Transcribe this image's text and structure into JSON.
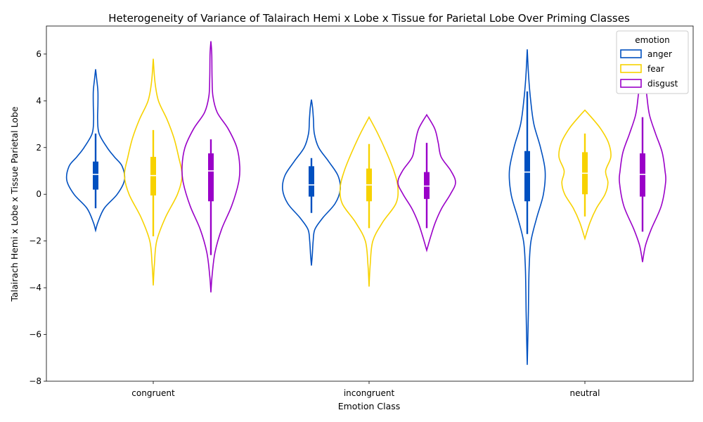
{
  "chart_data": {
    "type": "violin",
    "title": "Heterogeneity of Variance of Talairach Hemi x Lobe x Tissue for Parietal Lobe Over Priming Classes",
    "xlabel": "Emotion Class",
    "ylabel": "Talairach Hemi x Lobe x Tissue Parietal Lobe",
    "categories": [
      "congruent",
      "incongruent",
      "neutral"
    ],
    "ylim": [
      -8,
      7.2
    ],
    "yticks": [
      -8,
      -6,
      -4,
      -2,
      0,
      2,
      4,
      6
    ],
    "ytick_labels": [
      "−8",
      "−6",
      "−4",
      "−2",
      "0",
      "2",
      "4",
      "6"
    ],
    "legend": {
      "title": "emotion",
      "position": "top-right"
    },
    "grid": false,
    "series": [
      {
        "name": "anger",
        "color": "#0050c0",
        "groups": [
          {
            "min": -1.55,
            "max": 5.35,
            "q1": 0.2,
            "median": 0.85,
            "q3": 1.4,
            "whisker_low": -0.6,
            "whisker_high": 2.6,
            "profile": [
              [
                -1.55,
                0.0
              ],
              [
                -1.2,
                0.08
              ],
              [
                -0.6,
                0.3
              ],
              [
                0.0,
                0.75
              ],
              [
                0.6,
                1.0
              ],
              [
                1.2,
                0.92
              ],
              [
                1.6,
                0.65
              ],
              [
                2.0,
                0.4
              ],
              [
                2.6,
                0.12
              ],
              [
                3.2,
                0.07
              ],
              [
                3.8,
                0.08
              ],
              [
                4.4,
                0.08
              ],
              [
                4.9,
                0.04
              ],
              [
                5.35,
                0.0
              ]
            ]
          },
          {
            "min": -3.05,
            "max": 4.05,
            "q1": -0.1,
            "median": 0.4,
            "q3": 1.2,
            "whisker_low": -0.8,
            "whisker_high": 1.55,
            "profile": [
              [
                -3.05,
                0.0
              ],
              [
                -2.6,
                0.03
              ],
              [
                -2.0,
                0.06
              ],
              [
                -1.5,
                0.12
              ],
              [
                -1.0,
                0.4
              ],
              [
                -0.4,
                0.82
              ],
              [
                0.2,
                1.0
              ],
              [
                0.8,
                0.92
              ],
              [
                1.4,
                0.6
              ],
              [
                2.0,
                0.25
              ],
              [
                2.6,
                0.1
              ],
              [
                3.2,
                0.07
              ],
              [
                3.7,
                0.04
              ],
              [
                4.05,
                0.0
              ]
            ]
          },
          {
            "min": -7.3,
            "max": 6.2,
            "q1": -0.3,
            "median": 0.95,
            "q3": 1.85,
            "whisker_low": -1.7,
            "whisker_high": 4.4,
            "profile": [
              [
                -7.3,
                0.0
              ],
              [
                -6.2,
                0.02
              ],
              [
                -5.0,
                0.04
              ],
              [
                -4.0,
                0.05
              ],
              [
                -3.0,
                0.07
              ],
              [
                -2.0,
                0.13
              ],
              [
                -1.0,
                0.33
              ],
              [
                0.0,
                0.56
              ],
              [
                1.0,
                0.62
              ],
              [
                2.0,
                0.46
              ],
              [
                3.0,
                0.23
              ],
              [
                4.0,
                0.12
              ],
              [
                5.0,
                0.05
              ],
              [
                6.2,
                0.0
              ]
            ]
          }
        ]
      },
      {
        "name": "fear",
        "color": "#f7d200",
        "groups": [
          {
            "min": -3.9,
            "max": 5.8,
            "q1": -0.05,
            "median": 0.8,
            "q3": 1.6,
            "whisker_low": -1.8,
            "whisker_high": 2.75,
            "profile": [
              [
                -3.9,
                0.0
              ],
              [
                -3.0,
                0.04
              ],
              [
                -2.0,
                0.12
              ],
              [
                -1.0,
                0.42
              ],
              [
                0.0,
                0.84
              ],
              [
                0.8,
                1.0
              ],
              [
                1.6,
                0.88
              ],
              [
                2.4,
                0.72
              ],
              [
                3.2,
                0.48
              ],
              [
                4.0,
                0.18
              ],
              [
                4.8,
                0.06
              ],
              [
                5.8,
                0.0
              ]
            ]
          },
          {
            "min": -3.95,
            "max": 3.3,
            "q1": -0.3,
            "median": 0.4,
            "q3": 1.1,
            "whisker_low": -1.45,
            "whisker_high": 2.15,
            "profile": [
              [
                -3.95,
                0.0
              ],
              [
                -3.0,
                0.04
              ],
              [
                -2.0,
                0.13
              ],
              [
                -1.2,
                0.47
              ],
              [
                -0.4,
                0.93
              ],
              [
                0.3,
                1.0
              ],
              [
                1.0,
                0.86
              ],
              [
                1.8,
                0.6
              ],
              [
                2.6,
                0.3
              ],
              [
                3.3,
                0.0
              ]
            ]
          },
          {
            "min": -1.9,
            "max": 3.6,
            "q1": 0.0,
            "median": 0.9,
            "q3": 1.8,
            "whisker_low": -0.95,
            "whisker_high": 2.6,
            "profile": [
              [
                -1.9,
                0.0
              ],
              [
                -1.2,
                0.18
              ],
              [
                -0.6,
                0.4
              ],
              [
                0.0,
                0.7
              ],
              [
                0.5,
                0.8
              ],
              [
                1.0,
                0.72
              ],
              [
                1.6,
                0.9
              ],
              [
                2.2,
                0.82
              ],
              [
                2.8,
                0.55
              ],
              [
                3.3,
                0.22
              ],
              [
                3.6,
                0.0
              ]
            ]
          }
        ]
      },
      {
        "name": "disgust",
        "color": "#9a00c8",
        "groups": [
          {
            "min": -4.2,
            "max": 6.55,
            "q1": -0.3,
            "median": 1.0,
            "q3": 1.75,
            "whisker_low": -2.6,
            "whisker_high": 2.35,
            "profile": [
              [
                -4.2,
                0.0
              ],
              [
                -3.5,
                0.04
              ],
              [
                -2.5,
                0.14
              ],
              [
                -1.5,
                0.37
              ],
              [
                -0.5,
                0.72
              ],
              [
                0.5,
                0.96
              ],
              [
                1.2,
                1.0
              ],
              [
                2.0,
                0.9
              ],
              [
                2.8,
                0.6
              ],
              [
                3.5,
                0.22
              ],
              [
                4.2,
                0.07
              ],
              [
                5.0,
                0.04
              ],
              [
                6.0,
                0.03
              ],
              [
                6.55,
                0.0
              ]
            ]
          },
          {
            "min": -2.4,
            "max": 3.4,
            "q1": -0.2,
            "median": 0.35,
            "q3": 0.95,
            "whisker_low": -1.45,
            "whisker_high": 2.2,
            "profile": [
              [
                -2.4,
                0.0
              ],
              [
                -1.8,
                0.14
              ],
              [
                -1.2,
                0.3
              ],
              [
                -0.6,
                0.52
              ],
              [
                0.0,
                0.82
              ],
              [
                0.5,
                1.0
              ],
              [
                1.0,
                0.84
              ],
              [
                1.6,
                0.5
              ],
              [
                2.2,
                0.4
              ],
              [
                2.8,
                0.28
              ],
              [
                3.4,
                0.0
              ]
            ]
          },
          {
            "min": -2.9,
            "max": 5.5,
            "q1": -0.1,
            "median": 0.85,
            "q3": 1.75,
            "whisker_low": -1.6,
            "whisker_high": 3.3,
            "profile": [
              [
                -2.9,
                0.0
              ],
              [
                -2.2,
                0.1
              ],
              [
                -1.5,
                0.3
              ],
              [
                -0.5,
                0.65
              ],
              [
                0.5,
                0.8
              ],
              [
                1.0,
                0.78
              ],
              [
                1.8,
                0.68
              ],
              [
                2.6,
                0.45
              ],
              [
                3.4,
                0.24
              ],
              [
                4.2,
                0.15
              ],
              [
                5.0,
                0.08
              ],
              [
                5.5,
                0.0
              ]
            ]
          }
        ]
      }
    ]
  }
}
